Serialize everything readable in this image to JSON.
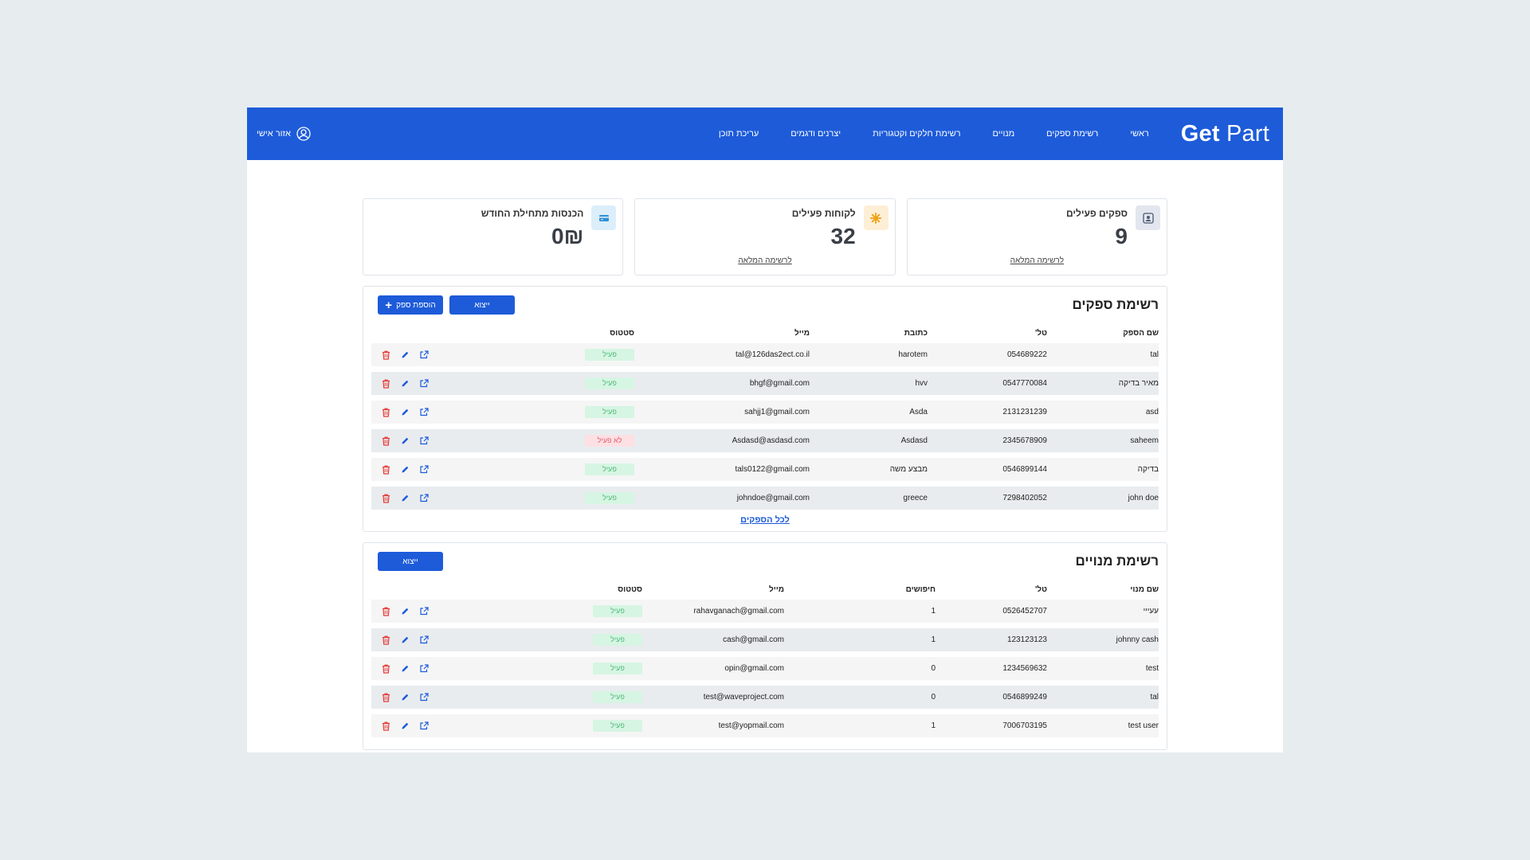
{
  "header": {
    "logo_bold": "Get",
    "logo_thin": "Part",
    "nav": [
      "ראשי",
      "רשימת ספקים",
      "מנויים",
      "רשימת חלקים וקטגוריות",
      "יצרנים ודגמים",
      "עריכת תוכן"
    ],
    "user_label": "אזור אישי"
  },
  "stats": [
    {
      "title": "ספקים פעילים",
      "value": "9",
      "link": "לרשימה המלאה",
      "icon": "user-card-icon",
      "icon_bg": "#e3e6ee",
      "icon_color": "#4a5a73"
    },
    {
      "title": "לקוחות פעילים",
      "value": "32",
      "link": "לרשימה המלאה",
      "icon": "gear-icon",
      "icon_bg": "#fdefd6",
      "icon_color": "#f0a41c"
    },
    {
      "title": "הכנסות מתחילת החודש",
      "value": "0₪",
      "link": "",
      "icon": "credit-card-icon",
      "icon_bg": "#dbeefa",
      "icon_color": "#2f8fd4"
    }
  ],
  "suppliers": {
    "title": "רשימת ספקים",
    "export_label": "ייצוא",
    "add_label": "הוספת ספק",
    "columns": [
      "שם הספק",
      "טל'",
      "כתובת",
      "מייל",
      "סטטוס"
    ],
    "rows": [
      {
        "name": "tal",
        "phone": "054689222",
        "address": "harotem",
        "email": "tal@126das2ect.co.il",
        "status": "פעיל",
        "active": true
      },
      {
        "name": "מאיר בדיקה",
        "phone": "0547770084",
        "address": "hvv",
        "email": "bhgf@gmail.com",
        "status": "פעיל",
        "active": true
      },
      {
        "name": "asd",
        "phone": "2131231239",
        "address": "Asda",
        "email": "sahjj1@gmail.com",
        "status": "פעיל",
        "active": true
      },
      {
        "name": "saheem",
        "phone": "2345678909",
        "address": "Asdasd",
        "email": "Asdasd@asdasd.com",
        "status": "לא פעיל",
        "active": false
      },
      {
        "name": "בדיקה",
        "phone": "0546899144",
        "address": "מבצע משה",
        "email": "tals0122@gmail.com",
        "status": "פעיל",
        "active": true
      },
      {
        "name": "john doe",
        "phone": "7298402052",
        "address": "greece",
        "email": "johndoe@gmail.com",
        "status": "פעיל",
        "active": true
      }
    ],
    "all_link": "לכל הספקים"
  },
  "subscribers": {
    "title": "רשימת מנויים",
    "export_label": "ייצוא",
    "columns": [
      "שם מנוי",
      "טל'",
      "חיפושים",
      "מייל",
      "סטטוס"
    ],
    "rows": [
      {
        "name": "עעייי",
        "phone": "0526452707",
        "searches": "1",
        "email": "rahavganach@gmail.com",
        "status": "פעיל",
        "active": true
      },
      {
        "name": "johnny cash",
        "phone": "123123123",
        "searches": "1",
        "email": "cash@gmail.com",
        "status": "פעיל",
        "active": true
      },
      {
        "name": "test",
        "phone": "1234569632",
        "searches": "0",
        "email": "opin@gmail.com",
        "status": "פעיל",
        "active": true
      },
      {
        "name": "tal",
        "phone": "0546899249",
        "searches": "0",
        "email": "test@waveproject.com",
        "status": "פעיל",
        "active": true
      },
      {
        "name": "test user",
        "phone": "7006703195",
        "searches": "1",
        "email": "test@yopmail.com",
        "status": "פעיל",
        "active": true
      }
    ]
  },
  "colors": {
    "brand": "#1d5bd9",
    "active_bg": "#d6f5e3",
    "inactive_bg": "#fde0e3",
    "delete_icon": "#e53935",
    "edit_icon": "#1d5bd9"
  }
}
